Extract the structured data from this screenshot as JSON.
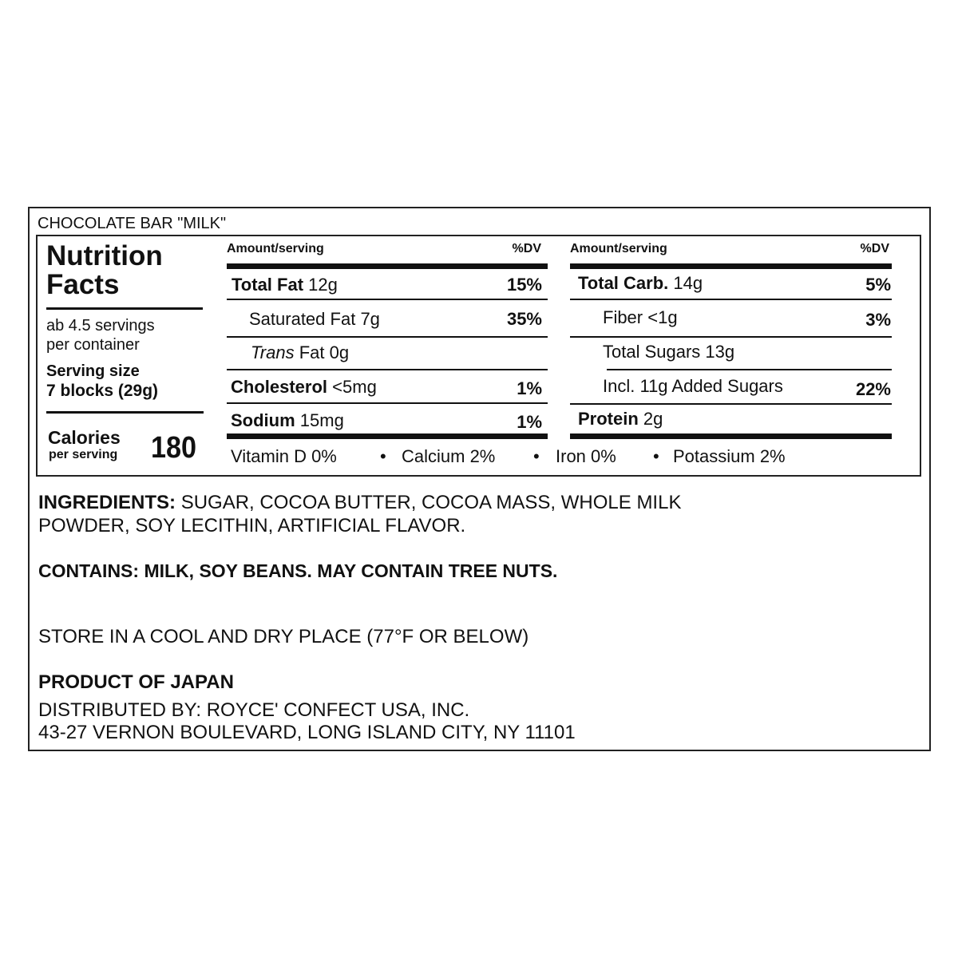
{
  "product_title": "CHOCOLATE BAR \"MILK\"",
  "facts": {
    "heading_line1": "Nutrition",
    "heading_line2": "Facts",
    "servings_line1": "ab 4.5 servings",
    "servings_line2": "per container",
    "serving_size_label": "Serving size",
    "serving_size_value": "7 blocks (29g)",
    "calories_label": "Calories",
    "calories_sub": "per serving",
    "calories_value": "180"
  },
  "left_table": {
    "header_amount": "Amount/serving",
    "header_dv": "%DV",
    "rows": [
      {
        "name": "Total Fat",
        "amount": "12g",
        "dv": "15%"
      },
      {
        "name": "Saturated Fat",
        "amount": "7g",
        "dv": "35%"
      },
      {
        "name": "Trans",
        "amount": "Fat 0g",
        "dv": ""
      },
      {
        "name": "Cholesterol",
        "amount": "<5mg",
        "dv": "1%"
      },
      {
        "name": "Sodium",
        "amount": "15mg",
        "dv": "1%"
      }
    ]
  },
  "right_table": {
    "header_amount": "Amount/serving",
    "header_dv": "%DV",
    "rows": [
      {
        "name": "Total Carb.",
        "amount": "14g",
        "dv": "5%"
      },
      {
        "name": "Fiber",
        "amount": "<1g",
        "dv": "3%"
      },
      {
        "name": "Total Sugars",
        "amount": "13g",
        "dv": ""
      },
      {
        "name": "Incl. 11g Added Sugars",
        "amount": "",
        "dv": "22%"
      },
      {
        "name": "Protein",
        "amount": "2g",
        "dv": ""
      }
    ]
  },
  "vitamins": [
    "Vitamin D 0%",
    "Calcium 2%",
    "Iron 0%",
    "Potassium 2%"
  ],
  "separator": "•",
  "ingredients": {
    "label": "INGREDIENTS:",
    "line1": "SUGAR, COCOA BUTTER, COCOA MASS, WHOLE MILK",
    "line2": "POWDER, SOY LECITHIN, ARTIFICIAL FLAVOR."
  },
  "contains": "CONTAINS: MILK, SOY BEANS. MAY CONTAIN TREE NUTS.",
  "storage": "STORE IN A COOL AND DRY PLACE (77°F OR BELOW)",
  "origin": "PRODUCT OF JAPAN",
  "distributor_line1": "DISTRIBUTED BY: ROYCE' CONFECT USA, INC.",
  "distributor_line2": "43-27 VERNON BOULEVARD, LONG ISLAND CITY, NY 11101"
}
